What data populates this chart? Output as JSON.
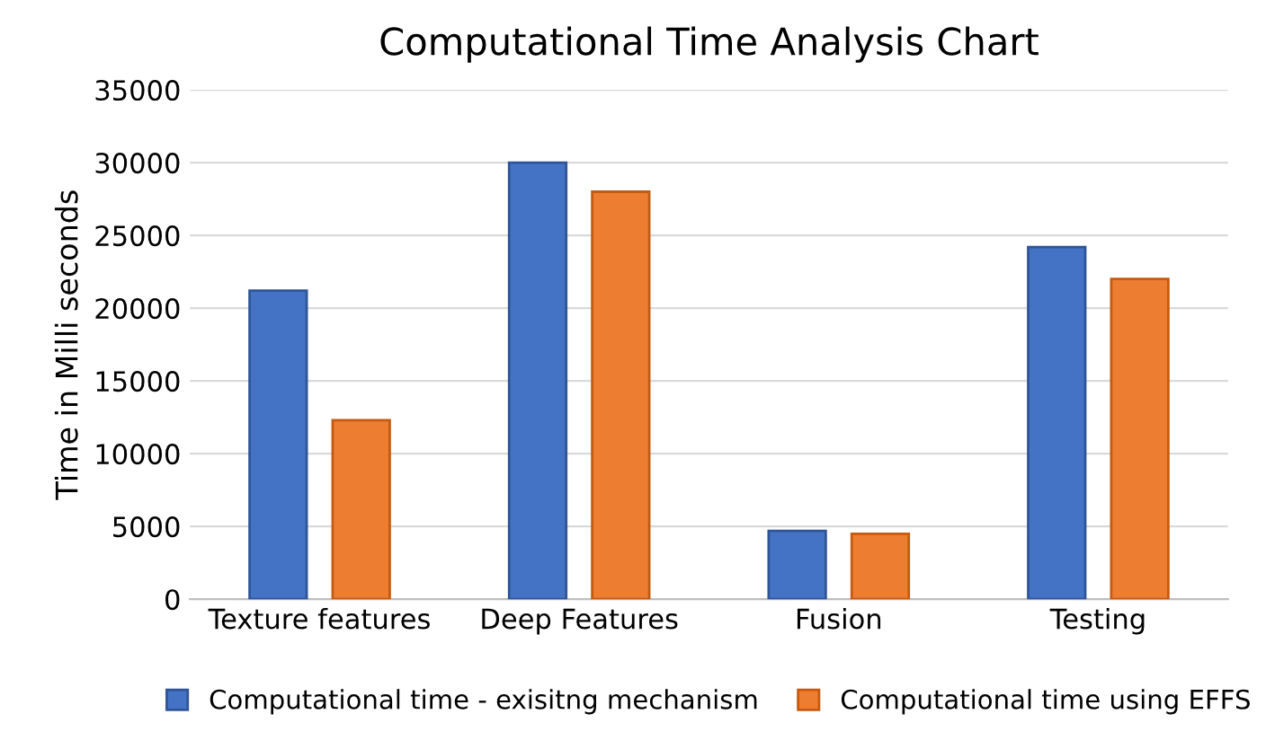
{
  "chart_data": {
    "type": "bar",
    "title": "Computational Time Analysis Chart",
    "ylabel": "Time in Milli seconds",
    "categories": [
      "Texture features",
      "Deep Features",
      "Fusion",
      "Testing"
    ],
    "series": [
      {
        "name": "Computational time - exisitng mechanism",
        "color": "#4472c4",
        "values": [
          21200,
          30000,
          4700,
          24200
        ]
      },
      {
        "name": "Computational time using EFFS",
        "color": "#ed7d31",
        "values": [
          12300,
          28000,
          4500,
          22000
        ]
      }
    ],
    "ylim": [
      0,
      35000
    ],
    "yticks": [
      0,
      5000,
      10000,
      15000,
      20000,
      25000,
      30000,
      35000
    ],
    "grid": "y",
    "legend": "bottom"
  }
}
